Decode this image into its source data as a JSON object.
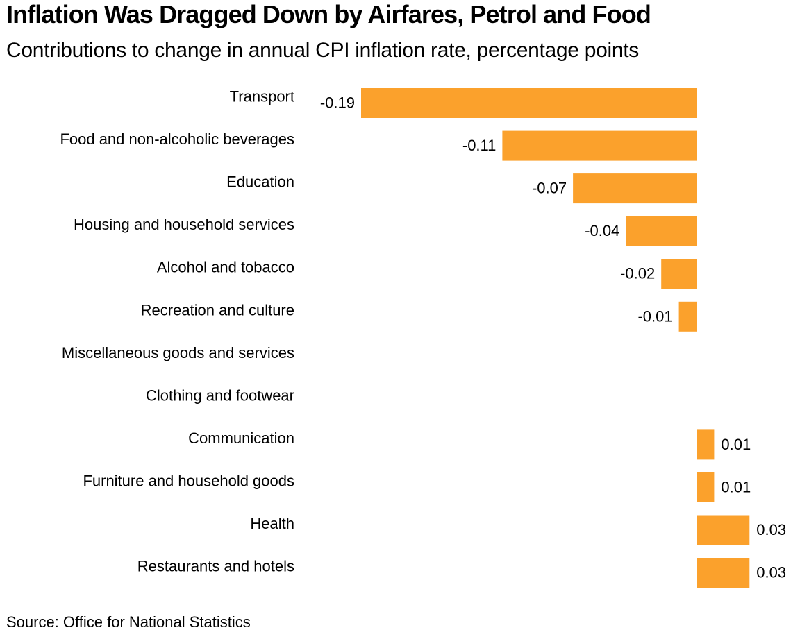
{
  "chart_data": {
    "type": "bar",
    "orientation": "horizontal",
    "title": "Inflation Was Dragged Down by Airfares, Petrol and Food",
    "subtitle": "Contributions to change in annual CPI inflation rate, percentage points",
    "categories": [
      "Transport",
      "Food and non-alcoholic beverages",
      "Education",
      "Housing and household services",
      "Alcohol and tobacco",
      "Recreation and culture",
      "Miscellaneous goods and services",
      "Clothing and footwear",
      "Communication",
      "Furniture and household goods",
      "Health",
      "Restaurants and hotels"
    ],
    "values": [
      -0.19,
      -0.11,
      -0.07,
      -0.04,
      -0.02,
      -0.01,
      0,
      0,
      0.01,
      0.01,
      0.03,
      0.03
    ],
    "labels": [
      "-0.19",
      "-0.11",
      "-0.07",
      "-0.04",
      "-0.02",
      "-0.01",
      "",
      "",
      "0.01",
      "0.01",
      "0.03",
      "0.03"
    ],
    "xlim": [
      -0.19,
      0.03
    ],
    "grid": false,
    "bar_color": "#fba12c",
    "source": "Source: Office for National Statistics"
  }
}
